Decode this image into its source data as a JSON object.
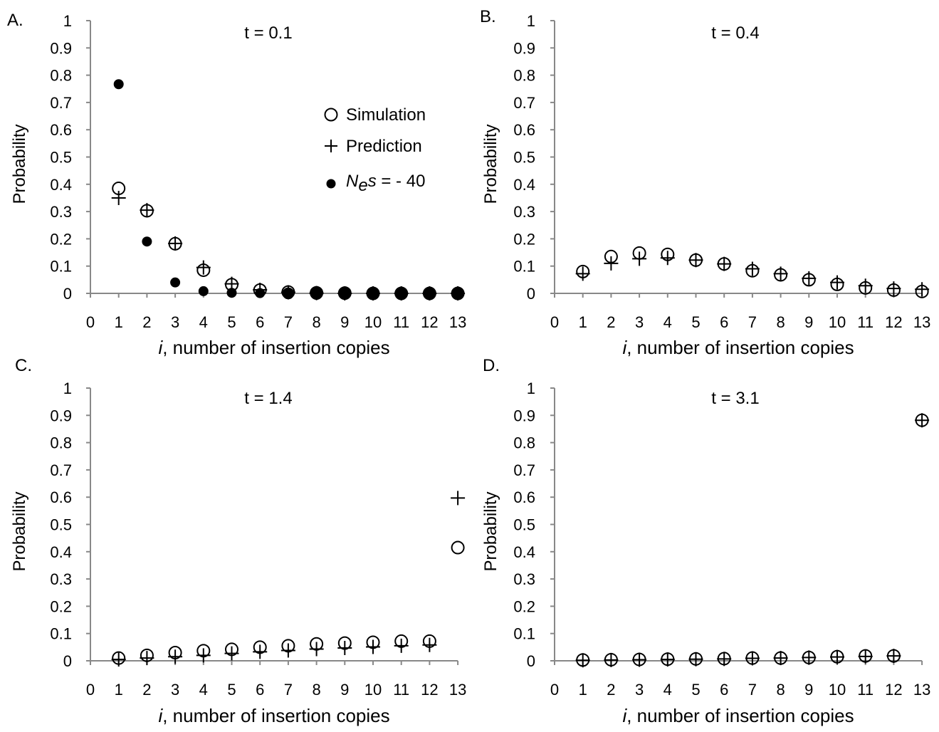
{
  "chart_data": [
    {
      "type": "scatter",
      "panel_label": "A.",
      "title": "t = 0.1",
      "xlabel_italic": "i",
      "xlabel_rest": ", number of insertion copies",
      "ylabel": "Probability",
      "x_ticks": [
        "0",
        "1",
        "2",
        "3",
        "4",
        "5",
        "6",
        "7",
        "8",
        "9",
        "10",
        "11",
        "12",
        "13"
      ],
      "y_ticks": [
        "0",
        "0.1",
        "0.2",
        "0.3",
        "0.4",
        "0.5",
        "0.6",
        "0.7",
        "0.8",
        "0.9",
        "1"
      ],
      "xlim": [
        0,
        13
      ],
      "ylim": [
        0,
        1
      ],
      "legend": {
        "position": "upper-right",
        "simulation": "Simulation",
        "prediction": "Prediction",
        "selection_italic1": "N",
        "selection_sub": "e",
        "selection_italic2": "s",
        "selection_rest": " = - 40"
      },
      "series": [
        {
          "name": "Simulation",
          "marker": "circle-open",
          "x": [
            1,
            2,
            3,
            4,
            5,
            6,
            7,
            8,
            9,
            10,
            11,
            12,
            13
          ],
          "y": [
            0.385,
            0.303,
            0.182,
            0.085,
            0.032,
            0.012,
            0.005,
            0.002,
            0.001,
            0.0,
            0.0,
            0.0,
            0.0
          ]
        },
        {
          "name": "Prediction",
          "marker": "plus",
          "x": [
            1,
            2,
            3,
            4,
            5,
            6,
            7,
            8,
            9,
            10,
            11,
            12,
            13
          ],
          "y": [
            0.35,
            0.305,
            0.183,
            0.095,
            0.035,
            0.013,
            0.004,
            0.001,
            0.0,
            0.0,
            0.0,
            0.0,
            0.0
          ]
        },
        {
          "name": "Nes = - 40",
          "marker": "circle-filled",
          "x": [
            1,
            2,
            3,
            4,
            5,
            6,
            7,
            8,
            9,
            10,
            11,
            12,
            13
          ],
          "y": [
            0.767,
            0.19,
            0.04,
            0.008,
            0.002,
            0.001,
            0.0,
            0.0,
            0.0,
            0.0,
            0.0,
            0.0,
            0.0
          ],
          "sizes": [
            1,
            1,
            1,
            1,
            1,
            1,
            1.2,
            1.3,
            1.3,
            1.3,
            1.3,
            1.3,
            1.3
          ]
        }
      ]
    },
    {
      "type": "scatter",
      "panel_label": "B.",
      "title": "t = 0.4",
      "xlabel_italic": "i",
      "xlabel_rest": ", number of insertion copies",
      "ylabel": "Probability",
      "x_ticks": [
        "0",
        "1",
        "2",
        "3",
        "4",
        "5",
        "6",
        "7",
        "8",
        "9",
        "10",
        "11",
        "12",
        "13"
      ],
      "y_ticks": [
        "0",
        "0.1",
        "0.2",
        "0.3",
        "0.4",
        "0.5",
        "0.6",
        "0.7",
        "0.8",
        "0.9",
        "1"
      ],
      "xlim": [
        0,
        13
      ],
      "ylim": [
        0,
        1
      ],
      "series": [
        {
          "name": "Simulation",
          "marker": "circle-open",
          "x": [
            1,
            2,
            3,
            4,
            5,
            6,
            7,
            8,
            9,
            10,
            11,
            12,
            13
          ],
          "y": [
            0.08,
            0.135,
            0.148,
            0.143,
            0.122,
            0.108,
            0.083,
            0.068,
            0.05,
            0.033,
            0.02,
            0.012,
            0.007
          ]
        },
        {
          "name": "Prediction",
          "marker": "plus",
          "x": [
            1,
            2,
            3,
            4,
            5,
            6,
            7,
            8,
            9,
            10,
            11,
            12,
            13
          ],
          "y": [
            0.072,
            0.11,
            0.127,
            0.13,
            0.122,
            0.108,
            0.09,
            0.072,
            0.055,
            0.04,
            0.028,
            0.018,
            0.015
          ]
        }
      ]
    },
    {
      "type": "scatter",
      "panel_label": "C.",
      "title": "t = 1.4",
      "xlabel_italic": "i",
      "xlabel_rest": ", number of insertion copies",
      "ylabel": "Probability",
      "x_ticks": [
        "0",
        "1",
        "2",
        "3",
        "4",
        "5",
        "6",
        "7",
        "8",
        "9",
        "10",
        "11",
        "12",
        "13"
      ],
      "y_ticks": [
        "0",
        "0.1",
        "0.2",
        "0.3",
        "0.4",
        "0.5",
        "0.6",
        "0.7",
        "0.8",
        "0.9",
        "1"
      ],
      "xlim": [
        0,
        13
      ],
      "ylim": [
        0,
        1
      ],
      "series": [
        {
          "name": "Simulation",
          "marker": "circle-open",
          "x": [
            1,
            2,
            3,
            4,
            5,
            6,
            7,
            8,
            9,
            10,
            11,
            12,
            13
          ],
          "y": [
            0.01,
            0.02,
            0.03,
            0.037,
            0.042,
            0.05,
            0.055,
            0.062,
            0.065,
            0.068,
            0.072,
            0.072,
            0.415
          ]
        },
        {
          "name": "Prediction",
          "marker": "plus",
          "x": [
            1,
            2,
            3,
            4,
            5,
            6,
            7,
            8,
            9,
            10,
            11,
            12,
            13
          ],
          "y": [
            0.005,
            0.01,
            0.015,
            0.02,
            0.027,
            0.033,
            0.038,
            0.043,
            0.047,
            0.051,
            0.055,
            0.058,
            0.597
          ]
        }
      ]
    },
    {
      "type": "scatter",
      "panel_label": "D.",
      "title": "t = 3.1",
      "xlabel_italic": "i",
      "xlabel_rest": ", number of insertion copies",
      "ylabel": "Probability",
      "x_ticks": [
        "0",
        "1",
        "2",
        "3",
        "4",
        "5",
        "6",
        "7",
        "8",
        "9",
        "10",
        "11",
        "12",
        "13"
      ],
      "y_ticks": [
        "0",
        "0.1",
        "0.2",
        "0.3",
        "0.4",
        "0.5",
        "0.6",
        "0.7",
        "0.8",
        "0.9",
        "1"
      ],
      "xlim": [
        0,
        13
      ],
      "ylim": [
        0,
        1
      ],
      "series": [
        {
          "name": "Simulation",
          "marker": "circle-open",
          "x": [
            1,
            2,
            3,
            4,
            5,
            6,
            7,
            8,
            9,
            10,
            11,
            12,
            13
          ],
          "y": [
            0.003,
            0.004,
            0.005,
            0.006,
            0.007,
            0.008,
            0.01,
            0.01,
            0.012,
            0.015,
            0.018,
            0.018,
            0.882
          ]
        },
        {
          "name": "Prediction",
          "marker": "plus",
          "x": [
            1,
            2,
            3,
            4,
            5,
            6,
            7,
            8,
            9,
            10,
            11,
            12,
            13
          ],
          "y": [
            0.002,
            0.003,
            0.004,
            0.005,
            0.006,
            0.007,
            0.009,
            0.01,
            0.012,
            0.014,
            0.016,
            0.018,
            0.882
          ]
        }
      ]
    }
  ]
}
